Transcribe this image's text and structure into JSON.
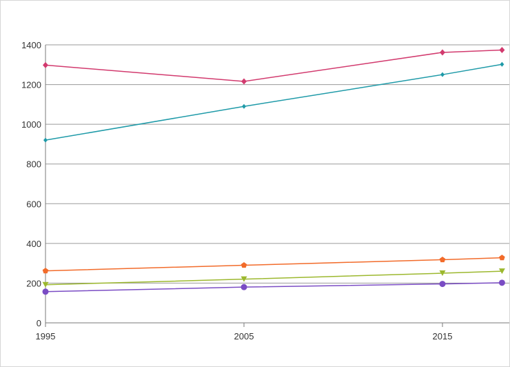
{
  "chart_data": {
    "type": "line",
    "title": "",
    "xlabel": "",
    "ylabel": "",
    "x": [
      1995,
      2005,
      2015,
      2018
    ],
    "xlim": [
      1995,
      2018
    ],
    "ylim": [
      0,
      1400
    ],
    "x_ticks": [
      "1995",
      "2005",
      "2015"
    ],
    "y_ticks": [
      "0",
      "200",
      "400",
      "600",
      "800",
      "1000",
      "1200",
      "1400"
    ],
    "grid": "horizontal",
    "legend": "none",
    "series": [
      {
        "color": "#d23a6e",
        "marker": "diamond",
        "values": [
          1298,
          1216,
          1362,
          1374
        ]
      },
      {
        "color": "#1e9aa8",
        "marker": "diamond-small",
        "values": [
          920,
          1090,
          1250,
          1302
        ]
      },
      {
        "color": "#f26b2a",
        "marker": "pentagon",
        "values": [
          262,
          290,
          318,
          328
        ]
      },
      {
        "color": "#9cb82e",
        "marker": "triangle-down",
        "values": [
          192,
          220,
          250,
          260
        ]
      },
      {
        "color": "#7a4cc4",
        "marker": "circle",
        "values": [
          157,
          180,
          196,
          202
        ]
      }
    ]
  }
}
